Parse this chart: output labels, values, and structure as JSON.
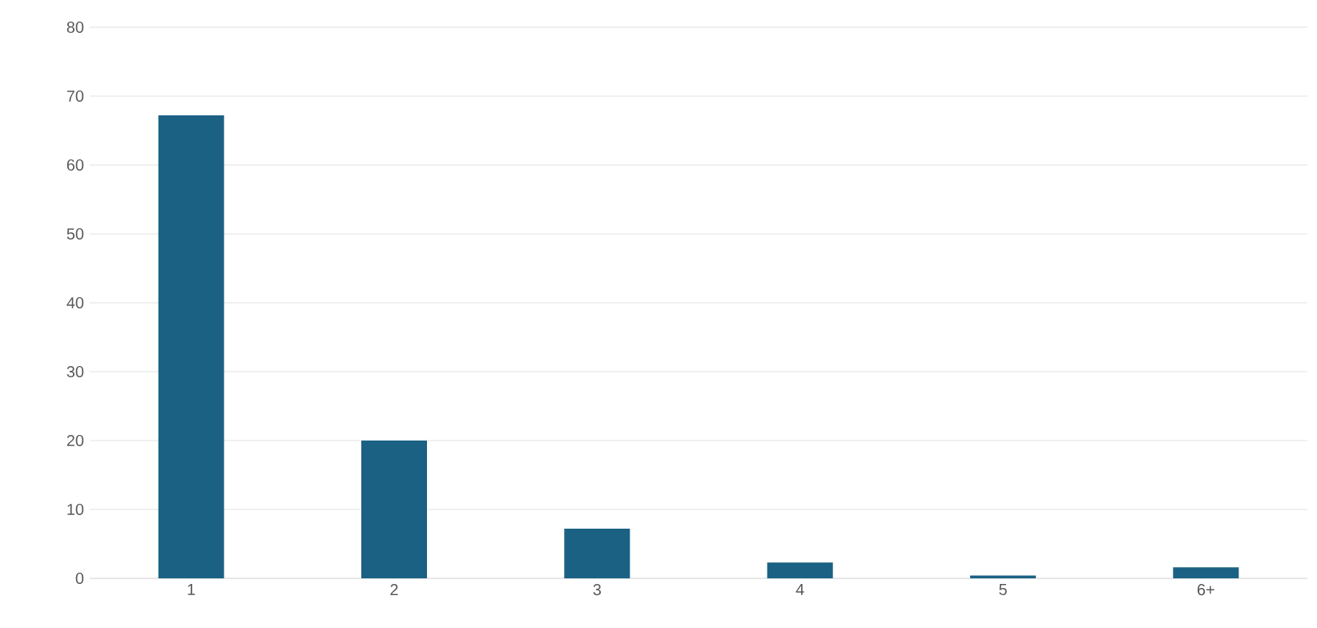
{
  "chart_data": {
    "type": "bar",
    "categories": [
      "1",
      "2",
      "3",
      "4",
      "5",
      "6+"
    ],
    "values": [
      67.2,
      20.0,
      7.2,
      2.3,
      0.4,
      1.6
    ],
    "color": "#1b6184",
    "ylim": [
      0,
      80
    ],
    "yticks": [
      0,
      10,
      20,
      30,
      40,
      50,
      60,
      70,
      80
    ],
    "grid": "y"
  }
}
